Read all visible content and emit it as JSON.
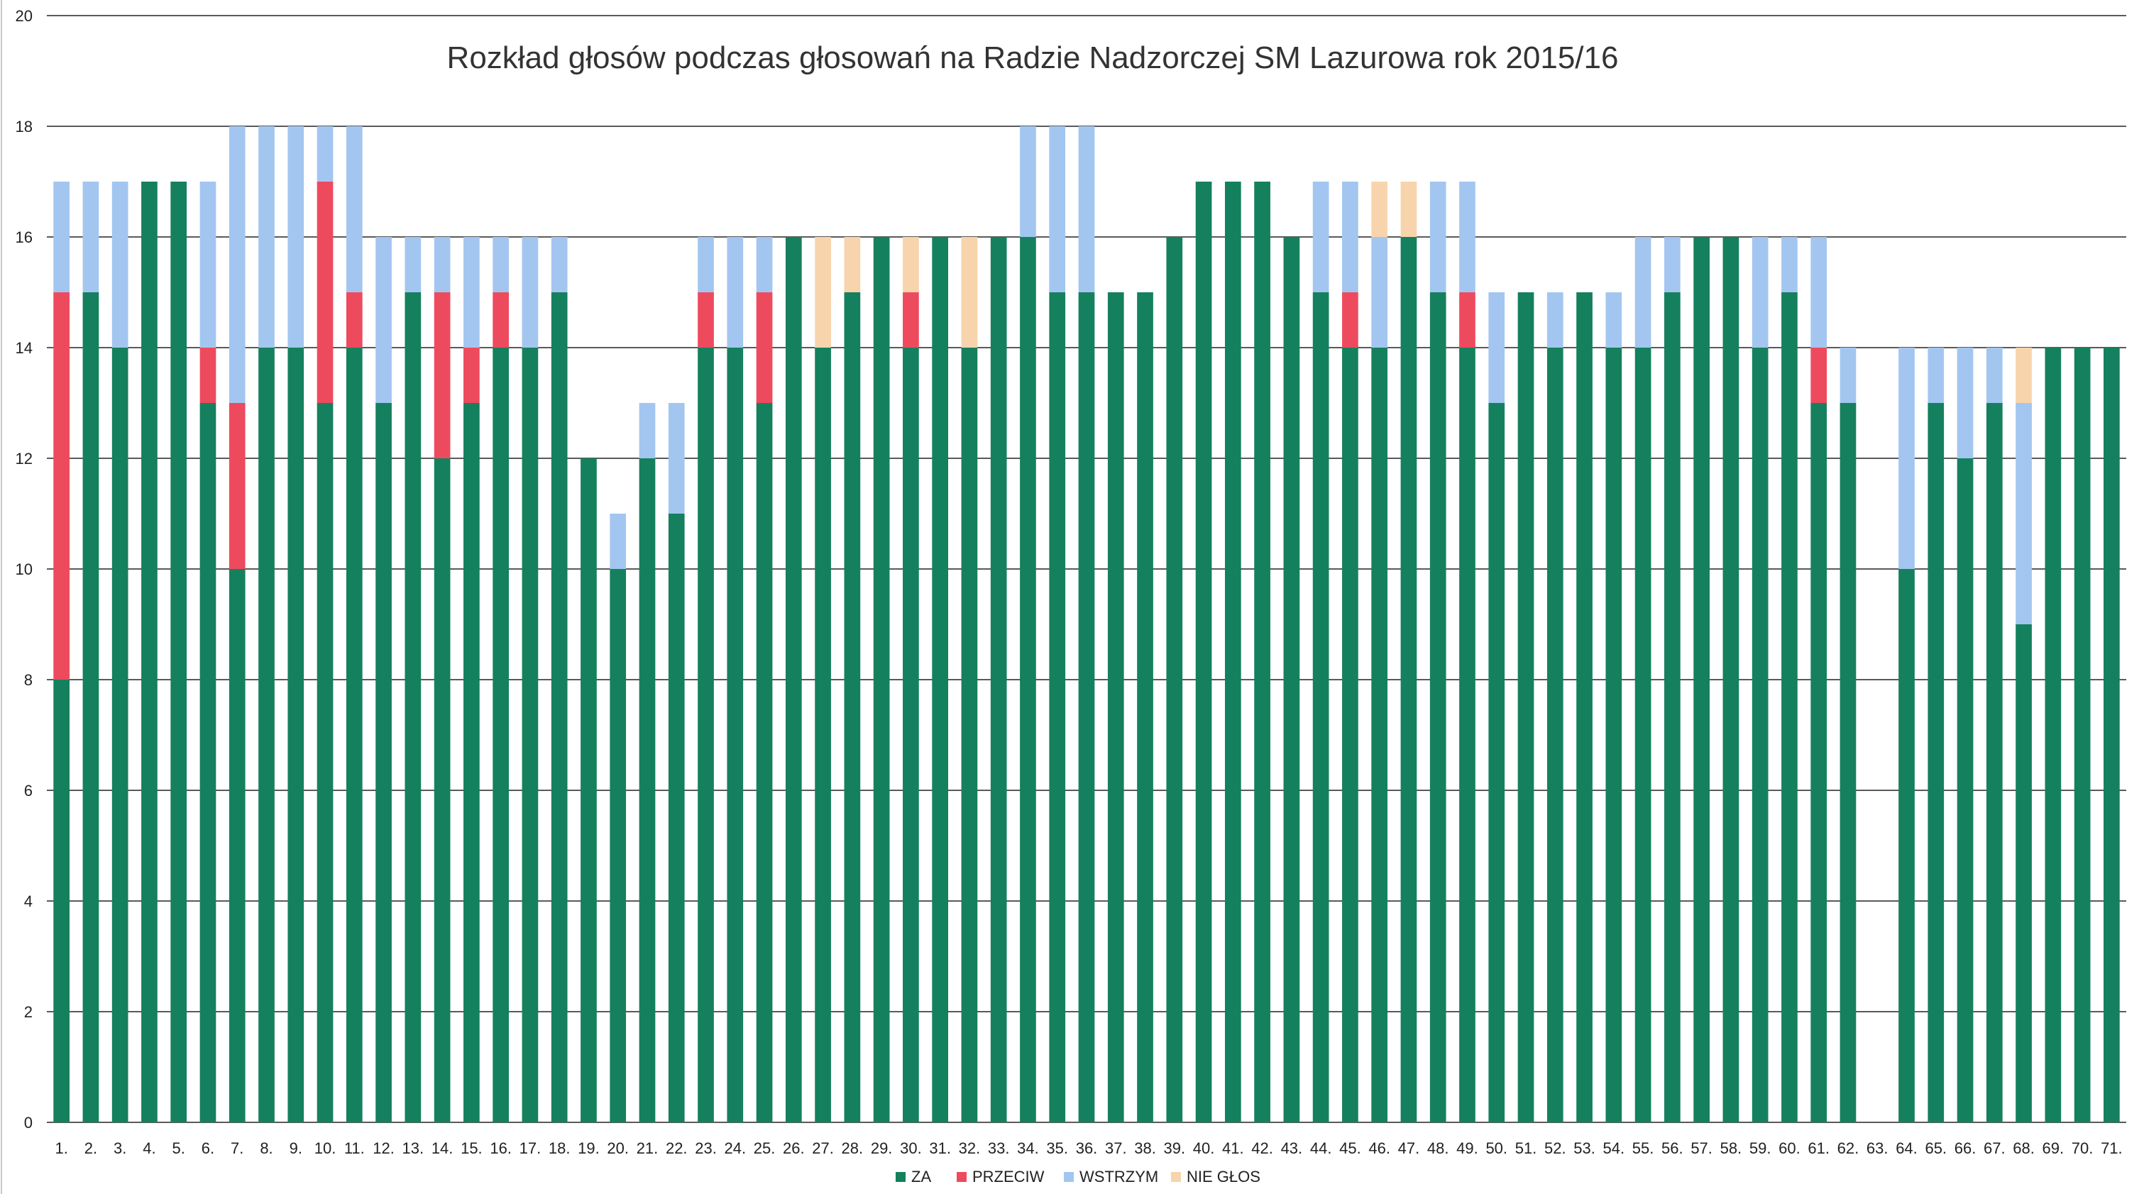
{
  "chart_data": {
    "type": "bar",
    "stacked": true,
    "title": "Rozkład głosów podczas głosowań na Radzie Nadzorczej SM Lazurowa  rok 2015/16",
    "xlabel": "",
    "ylabel": "",
    "ylim": [
      0,
      20
    ],
    "yticks": [
      "0",
      "2",
      "4",
      "6",
      "8",
      "10",
      "12",
      "14",
      "16",
      "18",
      "20"
    ],
    "grid": true,
    "legend_position": "bottom",
    "categories": [
      "1.",
      "2.",
      "3.",
      "4.",
      "5.",
      "6.",
      "7.",
      "8.",
      "9.",
      "10.",
      "11.",
      "12.",
      "13.",
      "14.",
      "15.",
      "16.",
      "17.",
      "18.",
      "19.",
      "20.",
      "21.",
      "22.",
      "23.",
      "24.",
      "25.",
      "26.",
      "27.",
      "28.",
      "29.",
      "30.",
      "31.",
      "32.",
      "33.",
      "34.",
      "35.",
      "36.",
      "37.",
      "38.",
      "39.",
      "40.",
      "41.",
      "42.",
      "43.",
      "44.",
      "45.",
      "46.",
      "47.",
      "48.",
      "49.",
      "50.",
      "51.",
      "52.",
      "53.",
      "54.",
      "55.",
      "56.",
      "57.",
      "58.",
      "59.",
      "60.",
      "61.",
      "62.",
      "63.",
      "64.",
      "65.",
      "66.",
      "67.",
      "68.",
      "69.",
      "70.",
      "71."
    ],
    "series": [
      {
        "name": "ZA",
        "color": "#15805e",
        "values": [
          8,
          15,
          14,
          17,
          17,
          13,
          10,
          14,
          14,
          13,
          14,
          13,
          15,
          12,
          13,
          14,
          14,
          15,
          12,
          10,
          12,
          11,
          14,
          14,
          13,
          16,
          14,
          15,
          16,
          14,
          16,
          14,
          16,
          16,
          15,
          15,
          15,
          15,
          16,
          17,
          17,
          17,
          16,
          15,
          14,
          14,
          16,
          15,
          14,
          13,
          15,
          14,
          15,
          14,
          14,
          15,
          16,
          16,
          14,
          15,
          13,
          13,
          0,
          10,
          13,
          12,
          13,
          9,
          14,
          14,
          14
        ]
      },
      {
        "name": "PRZECIW",
        "color": "#ee4a5e",
        "values": [
          7,
          0,
          0,
          0,
          0,
          1,
          3,
          0,
          0,
          4,
          1,
          0,
          0,
          3,
          1,
          1,
          0,
          0,
          0,
          0,
          0,
          0,
          1,
          0,
          2,
          0,
          0,
          0,
          0,
          1,
          0,
          0,
          0,
          0,
          0,
          0,
          0,
          0,
          0,
          0,
          0,
          0,
          0,
          0,
          1,
          0,
          0,
          0,
          1,
          0,
          0,
          0,
          0,
          0,
          0,
          0,
          0,
          0,
          0,
          0,
          1,
          0,
          0,
          0,
          0,
          0,
          0,
          0,
          0,
          0,
          0
        ]
      },
      {
        "name": "WSTRZYM",
        "color": "#a3c6f0",
        "values": [
          2,
          2,
          3,
          0,
          0,
          3,
          5,
          4,
          4,
          1,
          3,
          3,
          1,
          1,
          2,
          1,
          2,
          1,
          0,
          1,
          1,
          2,
          1,
          2,
          1,
          0,
          0,
          0,
          0,
          0,
          0,
          0,
          0,
          2,
          3,
          3,
          0,
          0,
          0,
          0,
          0,
          0,
          0,
          2,
          2,
          2,
          0,
          2,
          2,
          2,
          0,
          1,
          0,
          1,
          2,
          1,
          0,
          0,
          2,
          1,
          2,
          1,
          0,
          4,
          1,
          2,
          1,
          4,
          0,
          0,
          0
        ]
      },
      {
        "name": "NIE GŁOS",
        "color": "#f8d4ac",
        "values": [
          0,
          0,
          0,
          0,
          0,
          0,
          0,
          0,
          0,
          0,
          0,
          0,
          0,
          0,
          0,
          0,
          0,
          0,
          0,
          0,
          0,
          0,
          0,
          0,
          0,
          0,
          2,
          1,
          0,
          1,
          0,
          2,
          0,
          0,
          0,
          0,
          0,
          0,
          0,
          0,
          0,
          0,
          0,
          0,
          0,
          1,
          1,
          0,
          0,
          0,
          0,
          0,
          0,
          0,
          0,
          0,
          0,
          0,
          0,
          0,
          0,
          0,
          0,
          0,
          0,
          0,
          0,
          1,
          0,
          0,
          0
        ]
      }
    ]
  }
}
